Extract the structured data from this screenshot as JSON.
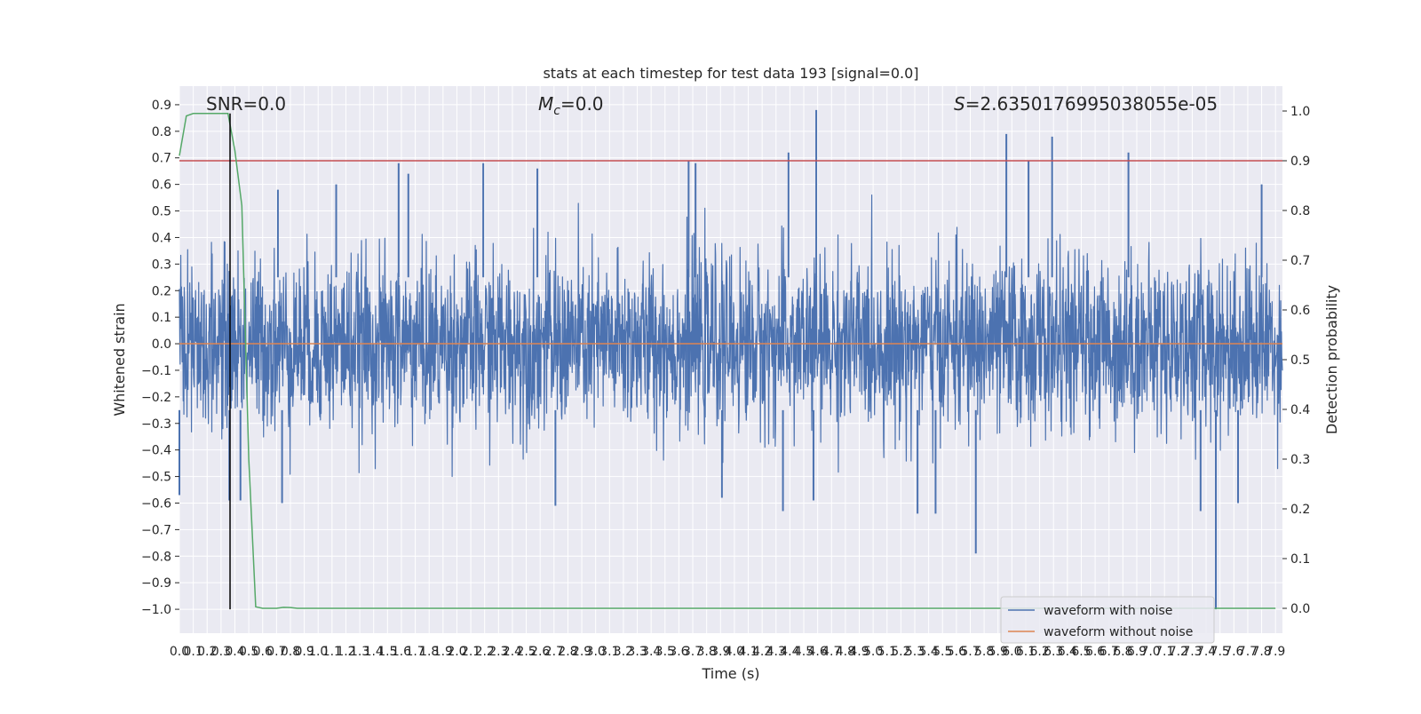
{
  "chart_data": {
    "type": "line",
    "title": "stats at each timestep for test data 193 [signal=0.0]",
    "xlabel": "Time (s)",
    "ylabel_left": "Whitened strain",
    "ylabel_right": "Detection probability",
    "xlim": [
      0.0,
      7.95
    ],
    "ylim_left": [
      -1.09,
      0.97
    ],
    "ylim_right": [
      -0.05,
      1.05
    ],
    "x_ticks": [
      0.0,
      0.1,
      0.2,
      0.3,
      0.4,
      0.5,
      0.6,
      0.7,
      0.8,
      0.9,
      1.0,
      1.1,
      1.2,
      1.3,
      1.4,
      1.5,
      1.6,
      1.7,
      1.8,
      1.9,
      2.0,
      2.1,
      2.2,
      2.3,
      2.4,
      2.5,
      2.6,
      2.7,
      2.8,
      2.9,
      3.0,
      3.1,
      3.2,
      3.3,
      3.4,
      3.5,
      3.6,
      3.7,
      3.8,
      3.9,
      4.0,
      4.1,
      4.2,
      4.3,
      4.4,
      4.5,
      4.6,
      4.7,
      4.8,
      4.9,
      5.0,
      5.1,
      5.2,
      5.3,
      5.4,
      5.5,
      5.6,
      5.7,
      5.8,
      5.9,
      6.0,
      6.1,
      6.2,
      6.3,
      6.4,
      6.5,
      6.6,
      6.7,
      6.8,
      6.9,
      7.0,
      7.1,
      7.2,
      7.3,
      7.4,
      7.5,
      7.6,
      7.7,
      7.8,
      7.9
    ],
    "y_ticks_left": [
      -1.0,
      -0.9,
      -0.8,
      -0.7,
      -0.6,
      -0.5,
      -0.4,
      -0.3,
      -0.2,
      -0.1,
      0.0,
      0.1,
      0.2,
      0.3,
      0.4,
      0.5,
      0.6,
      0.7,
      0.8,
      0.9
    ],
    "y_ticks_right": [
      0.0,
      0.1,
      0.2,
      0.3,
      0.4,
      0.5,
      0.6,
      0.7,
      0.8,
      0.9,
      1.0
    ],
    "grid": true,
    "legend_position": "lower-right",
    "annotations": {
      "snr": "SNR=0.0",
      "mc_symbol": "M",
      "mc_sub": "c",
      "mc_value": "=0.0",
      "s_symbol": "S",
      "s_value": "=2.6350176995038055e-05"
    },
    "series": [
      {
        "name": "waveform with noise",
        "axis": "left",
        "color": "#4c72b0",
        "kind": "noise",
        "x_range": [
          0.0,
          7.95
        ],
        "y_typical_range": [
          -0.45,
          0.45
        ],
        "peaks": [
          {
            "x": 4.59,
            "y": 0.88
          },
          {
            "x": 4.39,
            "y": 0.72
          },
          {
            "x": 5.96,
            "y": 0.79
          },
          {
            "x": 6.29,
            "y": 0.78
          },
          {
            "x": 6.12,
            "y": 0.69
          },
          {
            "x": 6.84,
            "y": 0.72
          },
          {
            "x": 3.67,
            "y": 0.69
          },
          {
            "x": 3.72,
            "y": 0.68
          },
          {
            "x": 2.19,
            "y": 0.68
          },
          {
            "x": 1.58,
            "y": 0.68
          },
          {
            "x": 2.58,
            "y": 0.66
          },
          {
            "x": 1.65,
            "y": 0.64
          },
          {
            "x": 7.8,
            "y": 0.6
          },
          {
            "x": 0.71,
            "y": 0.58
          },
          {
            "x": 1.13,
            "y": 0.6
          }
        ],
        "troughs": [
          {
            "x": 7.47,
            "y": -1.0
          },
          {
            "x": 5.74,
            "y": -0.79
          },
          {
            "x": 4.35,
            "y": -0.63
          },
          {
            "x": 5.32,
            "y": -0.64
          },
          {
            "x": 5.45,
            "y": -0.64
          },
          {
            "x": 2.71,
            "y": -0.61
          },
          {
            "x": 7.36,
            "y": -0.63
          },
          {
            "x": 0.74,
            "y": -0.6
          },
          {
            "x": 0.36,
            "y": -0.59
          },
          {
            "x": 0.44,
            "y": -0.59
          },
          {
            "x": 0.0,
            "y": -0.57
          },
          {
            "x": 4.57,
            "y": -0.59
          },
          {
            "x": 3.91,
            "y": -0.58
          },
          {
            "x": 7.63,
            "y": -0.6
          }
        ]
      },
      {
        "name": "waveform without noise",
        "axis": "left",
        "color": "#dd8452",
        "x": [
          0.0,
          7.95
        ],
        "y": [
          0.0,
          0.0
        ]
      },
      {
        "name": "",
        "axis": "right",
        "color": "#55a868",
        "x": [
          0.0,
          0.05,
          0.1,
          0.15,
          0.2,
          0.25,
          0.3,
          0.35,
          0.4,
          0.45,
          0.5,
          0.55,
          0.6,
          0.65,
          0.7,
          0.75,
          0.8,
          0.85,
          1.0,
          2.0,
          3.0,
          4.0,
          5.0,
          6.0,
          7.0,
          7.9
        ],
        "y": [
          0.91,
          0.99,
          0.995,
          0.995,
          0.995,
          0.995,
          0.995,
          0.995,
          0.92,
          0.81,
          0.3,
          0.003,
          0.0,
          0.0,
          0.0,
          0.002,
          0.0015,
          0.0,
          0.0,
          0.0,
          0.0,
          0.0,
          0.0,
          0.0,
          0.0,
          0.0
        ]
      }
    ],
    "reference_lines": [
      {
        "orientation": "horizontal",
        "axis": "right",
        "y": 0.9,
        "color": "#c44e52"
      },
      {
        "orientation": "vertical",
        "x": 0.365,
        "y_range": [
          -1.0,
          0.9
        ],
        "color": "#000000"
      }
    ]
  }
}
